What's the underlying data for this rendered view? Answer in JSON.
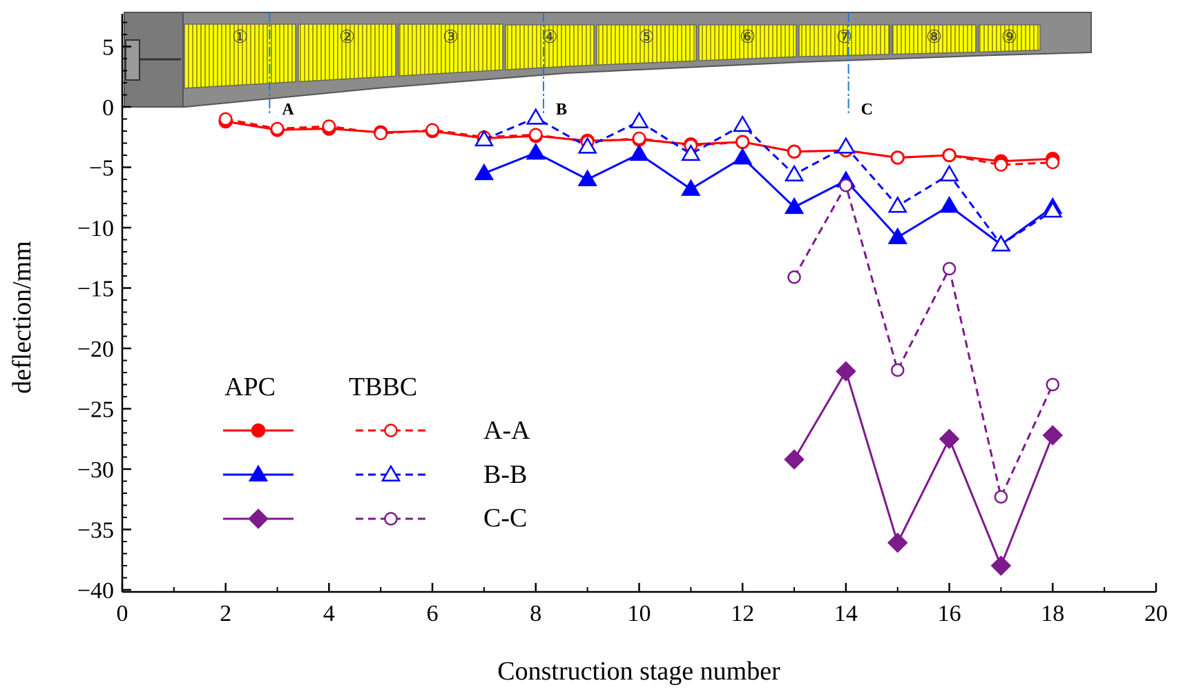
{
  "chart_data": {
    "type": "line",
    "xlabel": "Construction stage number",
    "ylabel": "deflection/mm",
    "xlim": [
      0,
      20
    ],
    "ylim": [
      -40,
      7.5
    ],
    "xticks": [
      0,
      2,
      4,
      6,
      8,
      10,
      12,
      14,
      16,
      18,
      20
    ],
    "yticks": [
      5,
      0,
      -5,
      -10,
      -15,
      -20,
      -25,
      -30,
      -35,
      -40
    ],
    "xtick_labels": [
      "0",
      "2",
      "4",
      "6",
      "8",
      "10",
      "12",
      "14",
      "16",
      "18",
      "20"
    ],
    "ytick_labels": [
      "5",
      "0",
      "−5",
      "−10",
      "−15",
      "−20",
      "−25",
      "−30",
      "−35",
      "−40"
    ],
    "legend": {
      "placement": "lower-left",
      "header_apc": "APC",
      "header_tbbc": "TBBC",
      "row_labels": [
        "A-A",
        "B-B",
        "C-C"
      ]
    },
    "series": [
      {
        "name": "APC A-A",
        "group": "APC",
        "section": "A-A",
        "color": "#ff0000",
        "style": "solid",
        "marker": "filled-circle",
        "x": [
          2,
          3,
          4,
          5,
          6,
          7,
          8,
          9,
          10,
          11,
          12,
          13,
          14,
          15,
          16,
          17,
          18
        ],
        "y": [
          -1.2,
          -1.9,
          -1.8,
          -2.1,
          -2.0,
          -2.6,
          -2.4,
          -2.8,
          -2.7,
          -3.1,
          -2.9,
          -3.7,
          -3.6,
          -4.2,
          -4.0,
          -4.5,
          -4.3
        ]
      },
      {
        "name": "TBBC A-A",
        "group": "TBBC",
        "section": "A-A",
        "color": "#ff0000",
        "style": "dashed",
        "marker": "open-circle",
        "x": [
          2,
          3,
          4,
          5,
          6,
          7,
          8,
          9,
          10,
          11,
          12,
          13,
          14,
          15,
          16,
          17,
          18
        ],
        "y": [
          -1.0,
          -1.8,
          -1.6,
          -2.2,
          -1.9,
          -2.5,
          -2.3,
          -2.9,
          -2.6,
          -3.2,
          -2.9,
          -3.7,
          -3.6,
          -4.2,
          -4.0,
          -4.8,
          -4.6
        ]
      },
      {
        "name": "APC B-B",
        "group": "APC",
        "section": "B-B",
        "color": "#0000ff",
        "style": "solid",
        "marker": "filled-triangle",
        "x": [
          7,
          8,
          9,
          10,
          11,
          12,
          13,
          14,
          15,
          16,
          17,
          18
        ],
        "y": [
          -5.5,
          -3.8,
          -6.0,
          -3.9,
          -6.8,
          -4.2,
          -8.3,
          -6.1,
          -10.8,
          -8.2,
          -11.4,
          -8.3
        ]
      },
      {
        "name": "TBBC B-B",
        "group": "TBBC",
        "section": "B-B",
        "color": "#0000ff",
        "style": "dashed",
        "marker": "open-triangle",
        "x": [
          7,
          8,
          9,
          10,
          11,
          12,
          13,
          14,
          15,
          16,
          17,
          18
        ],
        "y": [
          -2.7,
          -0.9,
          -3.3,
          -1.2,
          -3.9,
          -1.5,
          -5.6,
          -3.3,
          -8.2,
          -5.6,
          -11.4,
          -8.6
        ]
      },
      {
        "name": "APC C-C",
        "group": "APC",
        "section": "C-C",
        "color": "#7d1a8c",
        "style": "solid",
        "marker": "filled-diamond",
        "x": [
          13,
          14,
          15,
          16,
          17,
          18
        ],
        "y": [
          -29.2,
          -21.9,
          -36.1,
          -27.5,
          -38.0,
          -27.2
        ]
      },
      {
        "name": "TBBC C-C",
        "group": "TBBC",
        "section": "C-C",
        "color": "#7d1a8c",
        "style": "dashed",
        "marker": "open-circle",
        "x": [
          13,
          14,
          15,
          16,
          17,
          18
        ],
        "y": [
          -14.1,
          -6.5,
          -21.8,
          -13.4,
          -32.3,
          -23.0
        ]
      }
    ],
    "inset": {
      "description": "bridge cantilever section diagram",
      "segment_labels": [
        "①",
        "②",
        "③",
        "④",
        "⑤",
        "⑥",
        "⑦",
        "⑧",
        "⑨"
      ],
      "section_markers": [
        {
          "label": "A",
          "x": 2.85
        },
        {
          "label": "B",
          "x": 8.15
        },
        {
          "label": "C",
          "x": 14.05
        }
      ],
      "colors": {
        "deck": "#ffff00",
        "structure": "#909090",
        "hatch": "#7a7a00",
        "marker_line": "#1e7ad6"
      }
    }
  }
}
